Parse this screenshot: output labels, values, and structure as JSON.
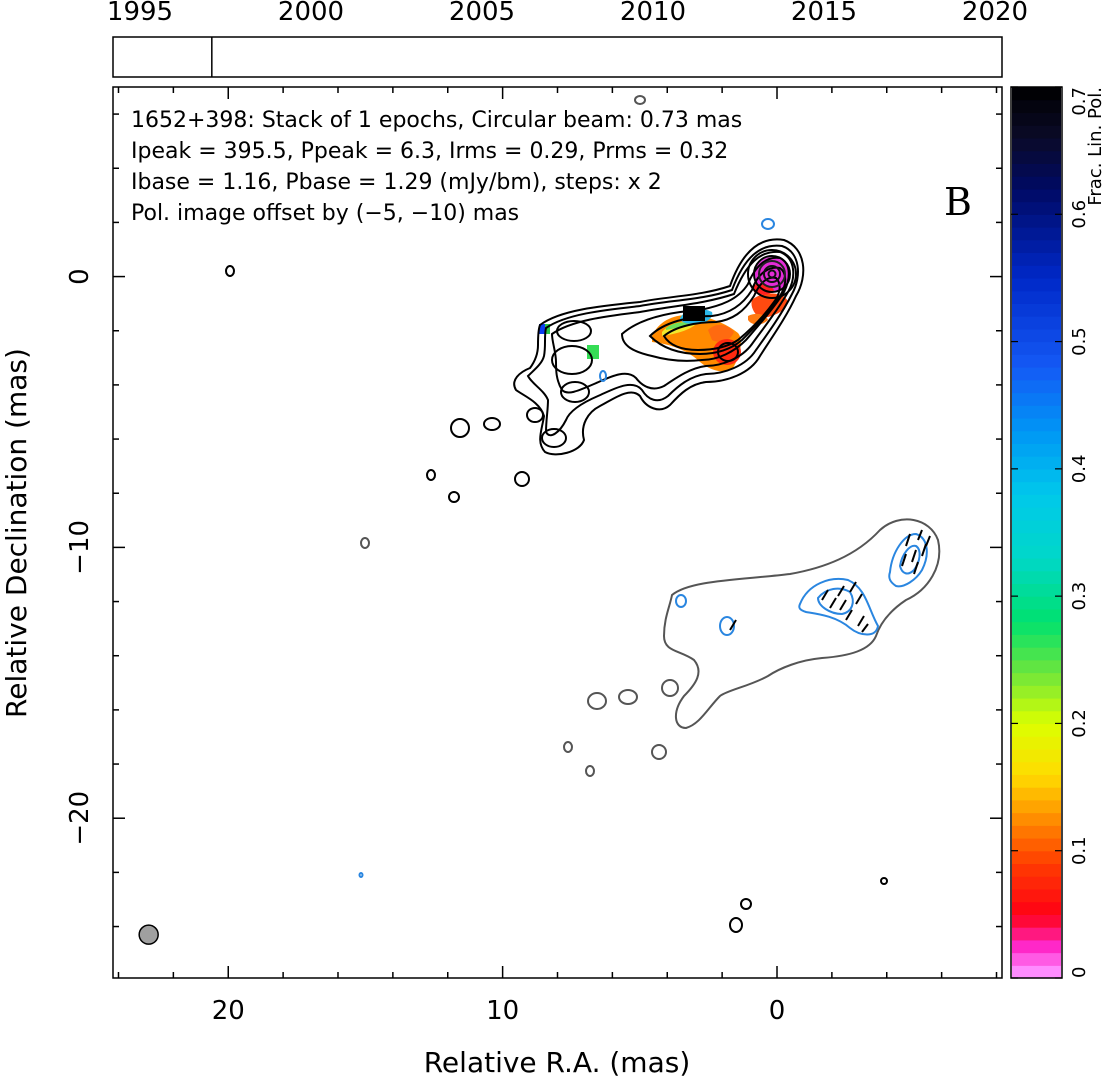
{
  "header": {
    "years": [
      "1995",
      "2000",
      "2005",
      "2010",
      "2015",
      "2020"
    ],
    "epoch_year": 1997.1
  },
  "info": {
    "line1": "1652+398: Stack of 1 epochs, Circular beam: 0.73 mas",
    "line2": "Ipeak = 395.5, Ppeak = 6.3, Irms = 0.29, Prms = 0.32",
    "line3": "Ibase = 1.16, Pbase = 1.29 (mJy/bm), steps: x 2",
    "line4": "Pol. image offset by (−5, −10) mas",
    "line4_color": "#2a86e0",
    "panel_letter": "B"
  },
  "chart_data": {
    "type": "heatmap",
    "title": "1652+398: Stack of 1 epochs, Circular beam: 0.73 mas",
    "xlabel": "Relative R.A. (mas)",
    "ylabel": "Relative Declination (mas)",
    "xlim": [
      24.2,
      -8.2
    ],
    "ylim": [
      -25.9,
      7.0
    ],
    "x_ticks": [
      20,
      10,
      0
    ],
    "x_tick_labels": [
      "20",
      "10",
      "0"
    ],
    "y_ticks": [
      0,
      -10,
      -20
    ],
    "y_tick_labels": [
      "0",
      "−10",
      "−20"
    ],
    "beam_fwhm_mas": 0.73,
    "beam_position": [
      22.9,
      -24.3
    ],
    "intensity_peak_position": [
      0.0,
      0.0
    ],
    "colorbar": {
      "label": "Frac. Lin. Pol.",
      "range": [
        0,
        0.7
      ],
      "ticks": [
        0,
        0.1,
        0.2,
        0.3,
        0.4,
        0.5,
        0.6,
        0.7
      ],
      "tick_labels": [
        "0",
        "0.1",
        "0.2",
        "0.3",
        "0.4",
        "0.5",
        "0.6",
        "0.7"
      ]
    },
    "colors": {
      "total_intensity_contours": "#000000",
      "offset_intensity_contour": "#555555",
      "polarization_contours": "#2a86e0",
      "evpa_ticks": "#000000",
      "beam_fill": "#a0a0a0"
    }
  }
}
